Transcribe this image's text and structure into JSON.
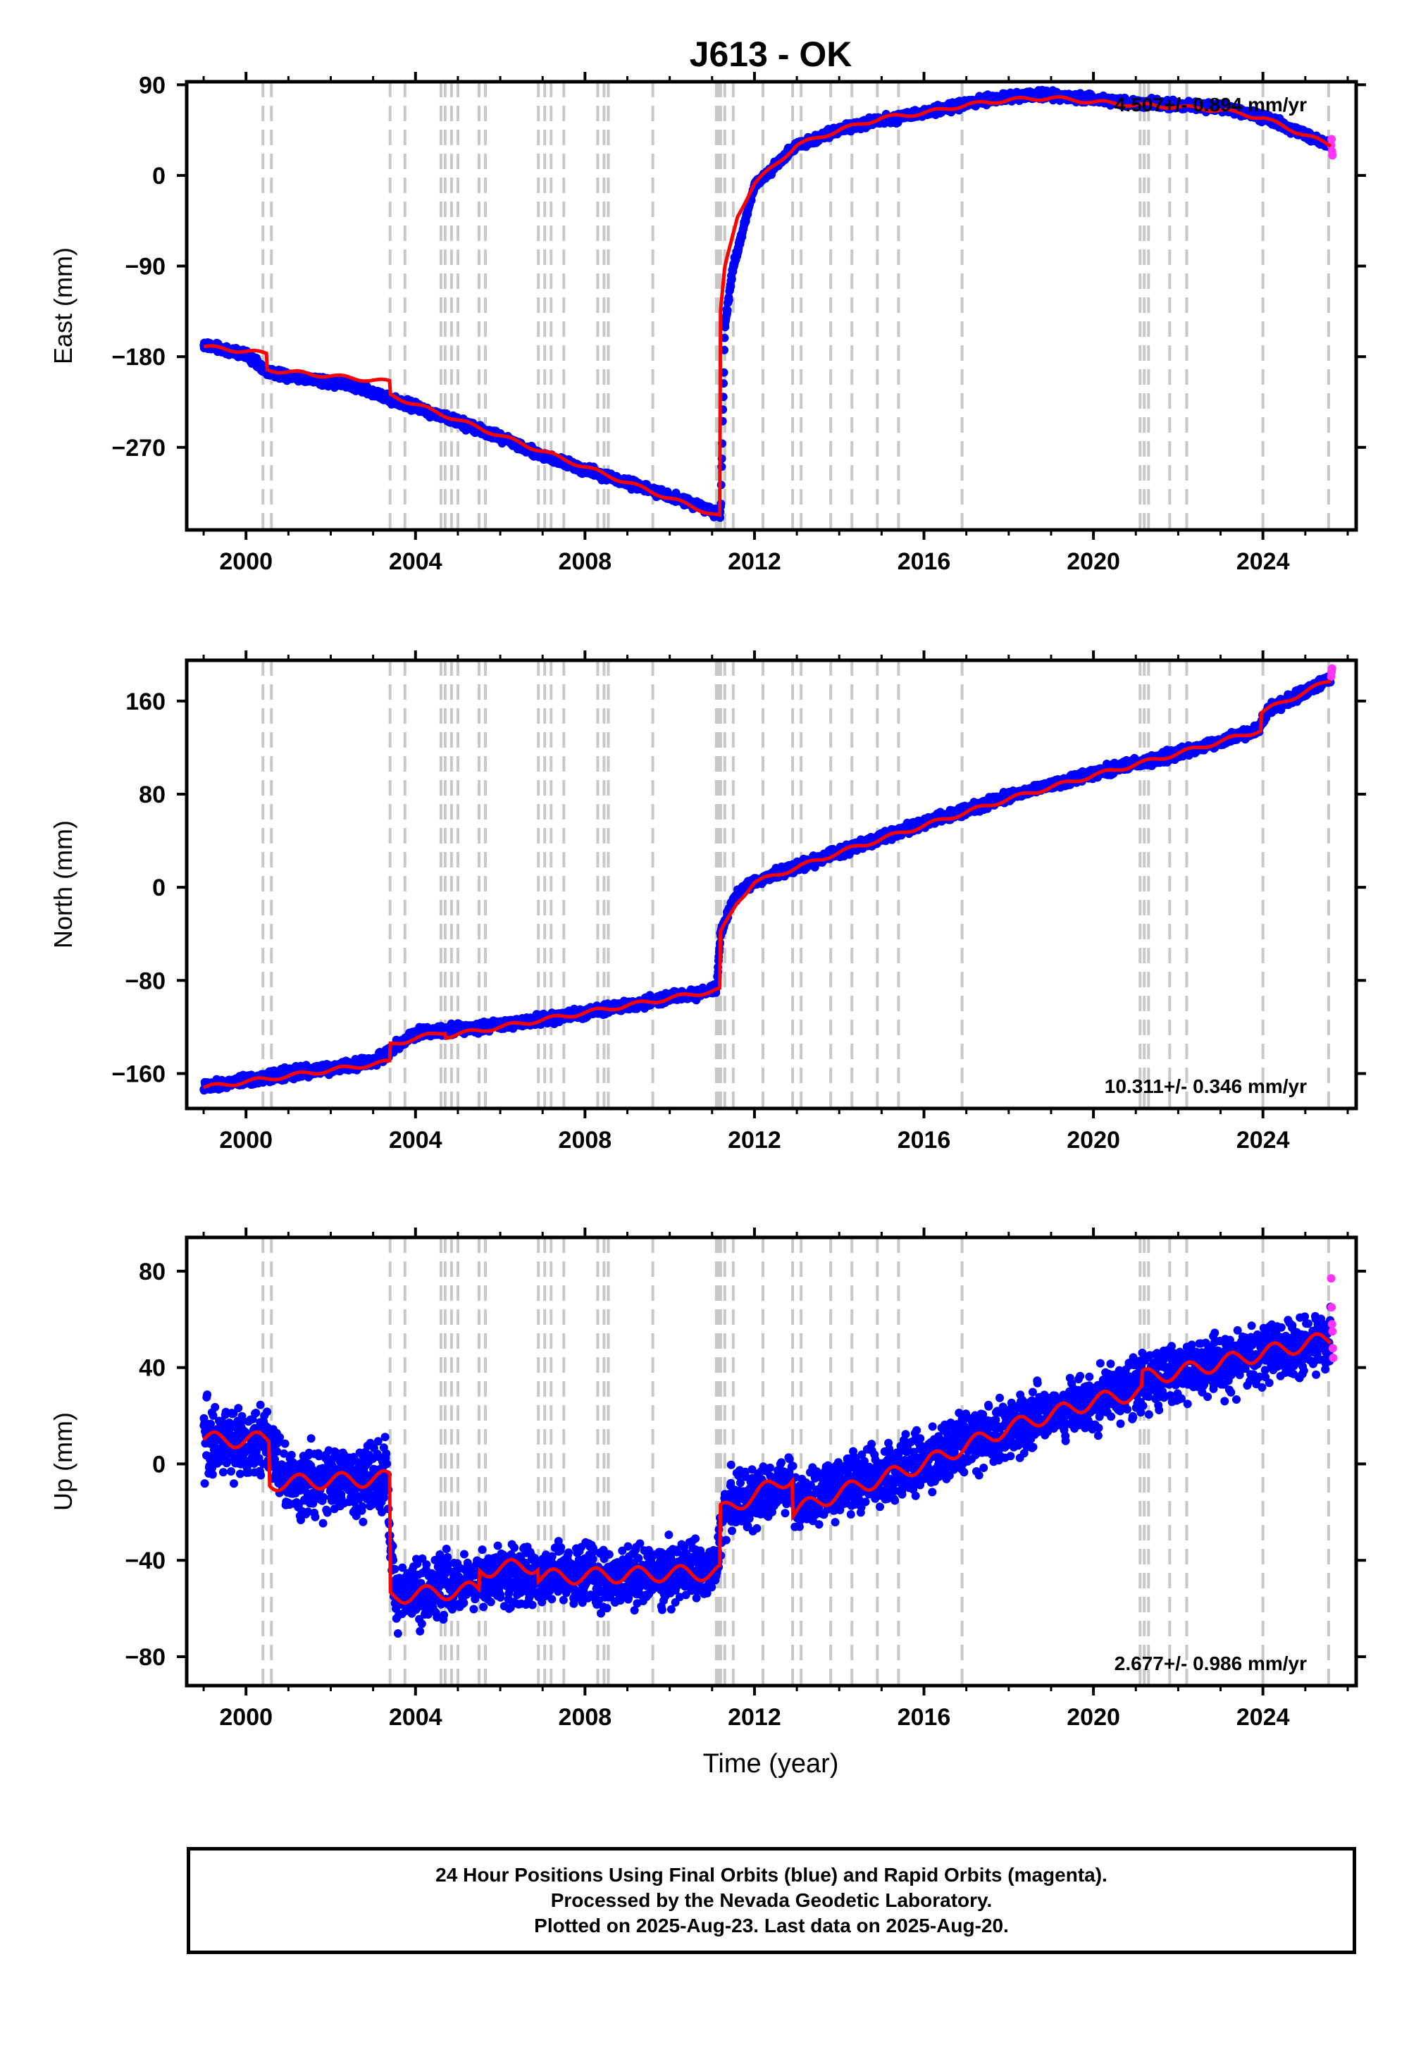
{
  "title": "J613 - OK",
  "xlabel": "Time (year)",
  "colors": {
    "final": "#0000ff",
    "rapid": "#ff33ff",
    "model": "#ff0000",
    "events": "#c8c8c8",
    "axes": "#000000"
  },
  "panels": [
    {
      "ylabel": "East (mm)",
      "rate_text": "4.507+/- 0.894 mm/yr"
    },
    {
      "ylabel": "North (mm)",
      "rate_text": "10.311+/- 0.346 mm/yr"
    },
    {
      "ylabel": "Up (mm)",
      "rate_text": "2.677+/- 0.986 mm/yr"
    }
  ],
  "footer": {
    "line1": "24 Hour Positions Using Final Orbits (blue) and Rapid Orbits (magenta).",
    "line2": "Processed by the Nevada Geodetic Laboratory.",
    "line3": "Plotted on 2025-Aug-23. Last data on 2025-Aug-20."
  },
  "chart_data": [
    {
      "type": "scatter",
      "title": "J613 - OK",
      "ylabel": "East (mm)",
      "xlabel": "",
      "xlim": [
        1998.6,
        2026.2
      ],
      "ylim": [
        -352,
        93
      ],
      "xticks": [
        2000,
        2004,
        2008,
        2012,
        2016,
        2020,
        2024
      ],
      "yticks": [
        90,
        0,
        -90,
        -180,
        -270
      ],
      "rate_text": "4.507+/- 0.894 mm/yr",
      "series": [
        {
          "name": "Final Orbits",
          "x": [
            1999.0,
            2000.0,
            2000.5,
            2001.5,
            2002.5,
            2003.4,
            2004.0,
            2005.0,
            2006.0,
            2007.0,
            2008.0,
            2009.0,
            2010.0,
            2011.0,
            2011.2,
            2011.3,
            2011.5,
            2012.0,
            2013.0,
            2014.0,
            2015.0,
            2016.0,
            2017.0,
            2018.0,
            2019.0,
            2020.0,
            2021.0,
            2022.0,
            2023.0,
            2024.0,
            2025.0,
            2025.6
          ],
          "y": [
            -168,
            -178,
            -195,
            -202,
            -208,
            -222,
            -230,
            -245,
            -260,
            -278,
            -292,
            -305,
            -318,
            -333,
            -338,
            -150,
            -90,
            -10,
            30,
            45,
            55,
            62,
            72,
            78,
            80,
            76,
            72,
            70,
            68,
            58,
            40,
            30
          ]
        },
        {
          "name": "Rapid Orbits",
          "x": [
            2025.61,
            2025.62,
            2025.63,
            2025.64
          ],
          "y": [
            30,
            36,
            24,
            20
          ]
        },
        {
          "name": "Model",
          "x": [
            1999.0,
            2000.5,
            2000.5,
            2003.4,
            2003.4,
            2011.19,
            2011.19,
            2011.3,
            2011.6,
            2012.0,
            2013.0,
            2014.0,
            2015.0,
            2016.0,
            2017.0,
            2018.0,
            2019.0,
            2020.0,
            2021.0,
            2022.0,
            2023.0,
            2024.0,
            2025.0,
            2025.6
          ],
          "y": [
            -170,
            -177,
            -193,
            -205,
            -218,
            -339,
            -140,
            -92,
            -40,
            -8,
            30,
            45,
            57,
            62,
            70,
            75,
            77,
            73,
            70,
            68,
            65,
            57,
            40,
            30
          ]
        }
      ]
    },
    {
      "type": "scatter",
      "ylabel": "North (mm)",
      "xlabel": "",
      "xlim": [
        1998.6,
        2026.2
      ],
      "ylim": [
        -190,
        195
      ],
      "xticks": [
        2000,
        2004,
        2008,
        2012,
        2016,
        2020,
        2024
      ],
      "yticks": [
        160,
        80,
        0,
        -80,
        -160
      ],
      "rate_text": "10.311+/- 0.346 mm/yr",
      "series": [
        {
          "name": "Final Orbits",
          "x": [
            1999.0,
            2001.0,
            2003.0,
            2004.0,
            2006.0,
            2008.0,
            2010.0,
            2011.1,
            2011.2,
            2011.5,
            2012.0,
            2014.0,
            2016.0,
            2018.0,
            2020.0,
            2022.0,
            2023.9,
            2024.1,
            2025.0,
            2025.6
          ],
          "y": [
            -172,
            -160,
            -150,
            -125,
            -118,
            -108,
            -95,
            -88,
            -40,
            -10,
            5,
            30,
            55,
            78,
            98,
            115,
            135,
            152,
            168,
            180
          ]
        },
        {
          "name": "Rapid Orbits",
          "x": [
            2025.61,
            2025.62,
            2025.63
          ],
          "y": [
            181,
            185,
            188
          ]
        },
        {
          "name": "Model",
          "x": [
            1999.0,
            2003.4,
            2003.4,
            2004.7,
            2004.7,
            2011.19,
            2011.19,
            2011.6,
            2012.0,
            2014.0,
            2016.0,
            2018.0,
            2020.0,
            2022.0,
            2023.95,
            2023.95,
            2025.0,
            2025.6
          ],
          "y": [
            -172,
            -150,
            -135,
            -124,
            -128,
            -88,
            -40,
            -12,
            4,
            30,
            53,
            76,
            96,
            115,
            135,
            150,
            168,
            178
          ]
        }
      ]
    },
    {
      "type": "scatter",
      "ylabel": "Up (mm)",
      "xlabel": "Time (year)",
      "xlim": [
        1998.6,
        2026.2
      ],
      "ylim": [
        -92,
        94
      ],
      "xticks": [
        2000,
        2004,
        2008,
        2012,
        2016,
        2020,
        2024
      ],
      "yticks": [
        80,
        40,
        0,
        -40,
        -80
      ],
      "rate_text": "2.677+/- 0.986 mm/yr",
      "series": [
        {
          "name": "Final Orbits",
          "x": [
            1999.0,
            2000.5,
            2001.0,
            2003.3,
            2003.5,
            2005.5,
            2007.0,
            2009.0,
            2011.1,
            2011.3,
            2012.9,
            2013.0,
            2014.0,
            2016.0,
            2018.0,
            2020.0,
            2022.0,
            2024.0,
            2025.6
          ],
          "y": [
            10,
            8,
            -8,
            -5,
            -55,
            -48,
            -45,
            -48,
            -44,
            -18,
            -8,
            -18,
            -10,
            2,
            15,
            27,
            38,
            45,
            52
          ]
        },
        {
          "name": "Rapid Orbits",
          "x": [
            2025.61,
            2025.62,
            2025.63,
            2025.64,
            2025.65,
            2025.66
          ],
          "y": [
            77,
            65,
            58,
            55,
            48,
            44
          ]
        },
        {
          "name": "Model",
          "x": [
            1999.0,
            2000.55,
            2000.55,
            2003.4,
            2003.4,
            2005.5,
            2005.5,
            2006.9,
            2006.9,
            2011.19,
            2011.19,
            2012.9,
            2012.9,
            2014.0,
            2016.0,
            2018.0,
            2020.0,
            2021.15,
            2021.15,
            2022.0,
            2024.0,
            2025.6
          ],
          "y": [
            10,
            10,
            -8,
            -6,
            -55,
            -52,
            -44,
            -42,
            -47,
            -45,
            -20,
            -5,
            -20,
            -12,
            0,
            15,
            26,
            30,
            36,
            38,
            46,
            52
          ]
        }
      ]
    }
  ]
}
